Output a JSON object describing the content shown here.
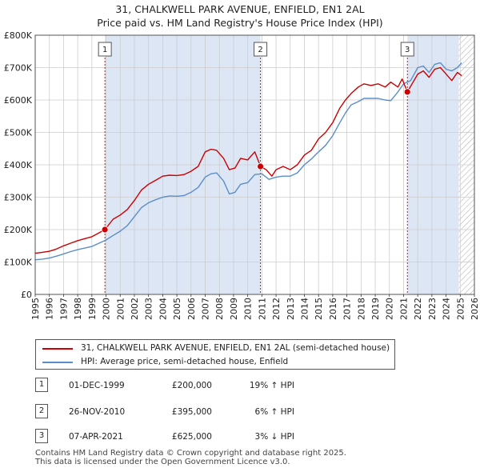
{
  "title": {
    "line1": "31, CHALKWELL PARK AVENUE, ENFIELD, EN1 2AL",
    "line2": "Price paid vs. HM Land Registry's House Price Index (HPI)"
  },
  "colors": {
    "property": "#cc0000",
    "hpi": "#5b8ec8",
    "shade": "#dde6f5",
    "grid": "#cccccc",
    "marker_line": "#cc0000"
  },
  "chart_data": {
    "type": "line",
    "title": "31, CHALKWELL PARK AVENUE, ENFIELD, EN1 2AL — Price paid vs. HM Land Registry's House Price Index (HPI)",
    "xlabel": "",
    "ylabel": "",
    "xlim": [
      1995,
      2026
    ],
    "ylim": [
      0,
      800000
    ],
    "grid": true,
    "y_ticks": [
      {
        "value": 0,
        "label": "£0"
      },
      {
        "value": 100000,
        "label": "£100K"
      },
      {
        "value": 200000,
        "label": "£200K"
      },
      {
        "value": 300000,
        "label": "£300K"
      },
      {
        "value": 400000,
        "label": "£400K"
      },
      {
        "value": 500000,
        "label": "£500K"
      },
      {
        "value": 600000,
        "label": "£600K"
      },
      {
        "value": 700000,
        "label": "£700K"
      },
      {
        "value": 800000,
        "label": "£800K"
      }
    ],
    "x_ticks": [
      "1995",
      "1996",
      "1997",
      "1998",
      "1999",
      "2000",
      "2001",
      "2002",
      "2003",
      "2004",
      "2005",
      "2006",
      "2007",
      "2008",
      "2009",
      "2010",
      "2011",
      "2012",
      "2013",
      "2014",
      "2015",
      "2016",
      "2017",
      "2018",
      "2019",
      "2020",
      "2021",
      "2022",
      "2023",
      "2024",
      "2025",
      "2026"
    ],
    "shaded_ranges": [
      [
        1999.92,
        2010.9
      ],
      [
        2021.27,
        2024.9
      ]
    ],
    "hatch_from": 2024.9,
    "series": [
      {
        "name": "31, CHALKWELL PARK AVENUE, ENFIELD, EN1 2AL (semi-detached house)",
        "color": "#cc0000",
        "x": [
          1995,
          1995.5,
          1996,
          1996.5,
          1997,
          1997.5,
          1998,
          1998.5,
          1999,
          1999.5,
          1999.92,
          2000.5,
          2001,
          2001.5,
          2002,
          2002.5,
          2003,
          2003.5,
          2004,
          2004.5,
          2005,
          2005.5,
          2006,
          2006.5,
          2007,
          2007.4,
          2007.8,
          2008.3,
          2008.7,
          2009.1,
          2009.5,
          2010,
          2010.5,
          2010.9,
          2011.3,
          2011.7,
          2012,
          2012.5,
          2013,
          2013.5,
          2014,
          2014.5,
          2015,
          2015.5,
          2016,
          2016.5,
          2016.9,
          2017.3,
          2017.8,
          2018.2,
          2018.7,
          2019.2,
          2019.7,
          2020.1,
          2020.6,
          2020.9,
          2021.27,
          2021.6,
          2022,
          2022.4,
          2022.8,
          2023.2,
          2023.6,
          2024,
          2024.4,
          2024.8,
          2025.1
        ],
        "y": [
          127000,
          130000,
          133000,
          140000,
          150000,
          158000,
          166000,
          172000,
          178000,
          190000,
          200000,
          232000,
          245000,
          262000,
          290000,
          322000,
          340000,
          352000,
          365000,
          368000,
          367000,
          370000,
          380000,
          395000,
          440000,
          448000,
          445000,
          420000,
          385000,
          390000,
          420000,
          415000,
          440000,
          395000,
          385000,
          365000,
          385000,
          395000,
          385000,
          400000,
          430000,
          445000,
          480000,
          500000,
          530000,
          575000,
          600000,
          620000,
          640000,
          650000,
          645000,
          650000,
          640000,
          655000,
          640000,
          665000,
          625000,
          650000,
          680000,
          690000,
          670000,
          695000,
          700000,
          680000,
          660000,
          685000,
          675000
        ]
      },
      {
        "name": "HPI: Average price, semi-detached house, Enfield",
        "color": "#5b8ec8",
        "x": [
          1995,
          1995.5,
          1996,
          1996.5,
          1997,
          1997.5,
          1998,
          1998.5,
          1999,
          1999.5,
          2000,
          2000.5,
          2001,
          2001.5,
          2002,
          2002.5,
          2003,
          2003.5,
          2004,
          2004.5,
          2005,
          2005.5,
          2006,
          2006.5,
          2007,
          2007.4,
          2007.8,
          2008.3,
          2008.7,
          2009.1,
          2009.5,
          2010,
          2010.5,
          2011,
          2011.5,
          2012,
          2012.5,
          2013,
          2013.5,
          2014,
          2014.5,
          2015,
          2015.5,
          2016,
          2016.5,
          2016.9,
          2017.3,
          2017.8,
          2018.2,
          2018.7,
          2019.2,
          2019.7,
          2020.1,
          2020.6,
          2021,
          2021.5,
          2022,
          2022.4,
          2022.8,
          2023.2,
          2023.6,
          2024,
          2024.4,
          2024.8,
          2025.1
        ],
        "y": [
          107000,
          109000,
          112000,
          118000,
          125000,
          132000,
          138000,
          143000,
          148000,
          158000,
          168000,
          182000,
          195000,
          212000,
          240000,
          268000,
          283000,
          292000,
          300000,
          304000,
          303000,
          305000,
          315000,
          330000,
          362000,
          372000,
          375000,
          350000,
          310000,
          315000,
          340000,
          345000,
          370000,
          372000,
          355000,
          362000,
          365000,
          365000,
          375000,
          400000,
          418000,
          440000,
          460000,
          490000,
          530000,
          560000,
          585000,
          595000,
          605000,
          605000,
          605000,
          600000,
          598000,
          625000,
          650000,
          660000,
          700000,
          705000,
          685000,
          710000,
          715000,
          695000,
          690000,
          700000,
          715000
        ]
      }
    ],
    "sales": [
      {
        "n": "1",
        "x": 1999.92,
        "y": 200000
      },
      {
        "n": "2",
        "x": 2010.9,
        "y": 395000
      },
      {
        "n": "3",
        "x": 2021.27,
        "y": 625000
      }
    ]
  },
  "legend": {
    "property_label": "31, CHALKWELL PARK AVENUE, ENFIELD, EN1 2AL (semi-detached house)",
    "hpi_label": "HPI: Average price, semi-detached house, Enfield"
  },
  "sales_table": [
    {
      "n": "1",
      "date": "01-DEC-1999",
      "price": "£200,000",
      "hpi": "19% ↑ HPI"
    },
    {
      "n": "2",
      "date": "26-NOV-2010",
      "price": "£395,000",
      "hpi": "6% ↑ HPI"
    },
    {
      "n": "3",
      "date": "07-APR-2021",
      "price": "£625,000",
      "hpi": "3% ↓ HPI"
    }
  ],
  "footer": {
    "line1": "Contains HM Land Registry data © Crown copyright and database right 2025.",
    "line2": "This data is licensed under the Open Government Licence v3.0."
  }
}
